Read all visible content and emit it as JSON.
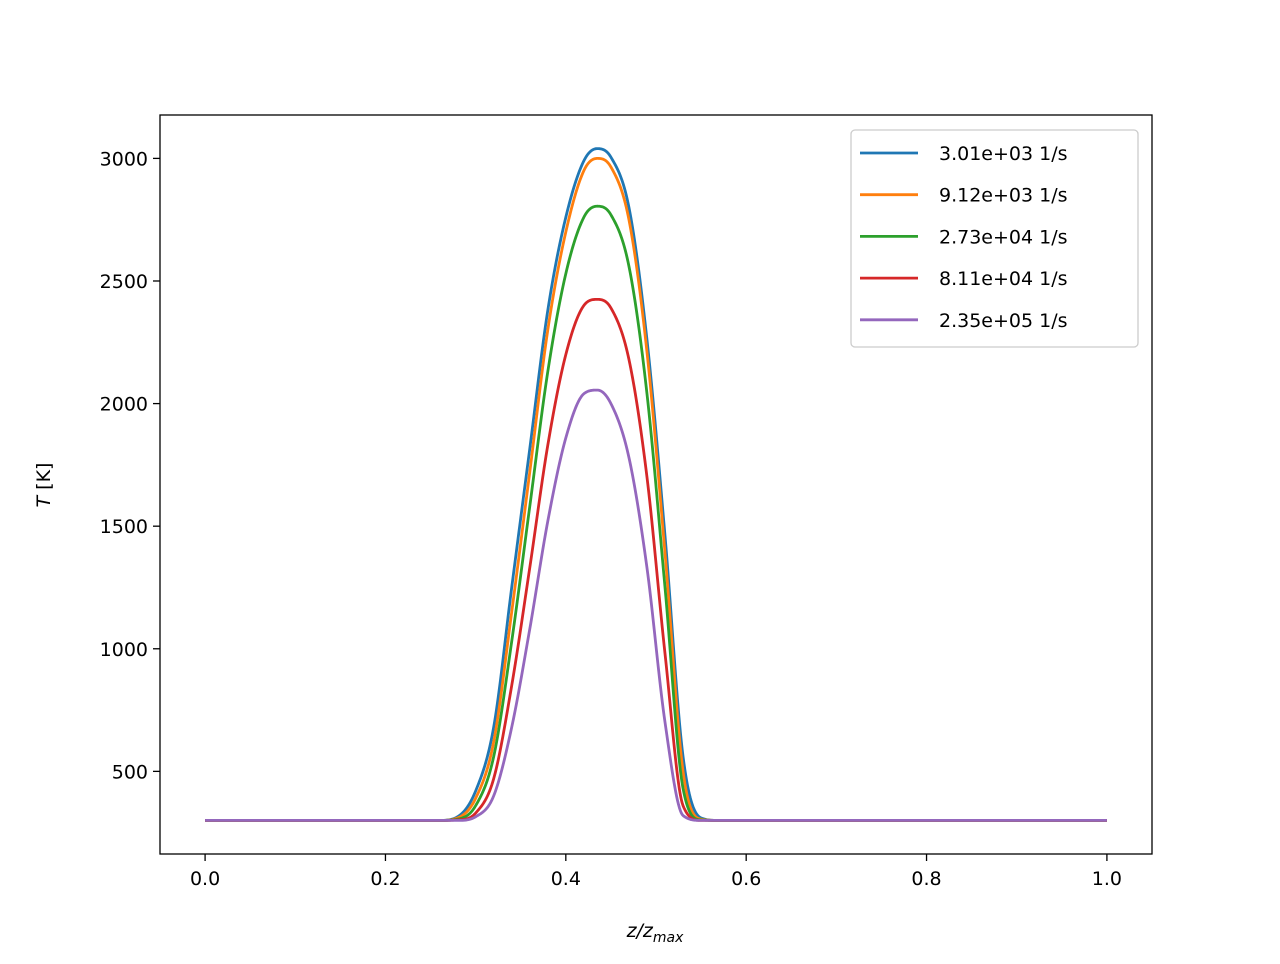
{
  "chart_data": {
    "type": "line",
    "xlabel_main": "z/z",
    "xlabel_sub": "max",
    "ylabel_var": "T",
    "ylabel_unit": "[K]",
    "xlim": [
      -0.05,
      1.05
    ],
    "ylim": [
      163,
      3177
    ],
    "xticks": [
      0.0,
      0.2,
      0.4,
      0.6,
      0.8,
      1.0
    ],
    "xtick_labels": [
      "0.0",
      "0.2",
      "0.4",
      "0.6",
      "0.8",
      "1.0"
    ],
    "yticks": [
      500,
      1000,
      1500,
      2000,
      2500,
      3000
    ],
    "ytick_labels": [
      "500",
      "1000",
      "1500",
      "2000",
      "2500",
      "3000"
    ],
    "grid": false,
    "legend_position": "top-right",
    "x": [
      0,
      0.26,
      0.28,
      0.3,
      0.32,
      0.34,
      0.36,
      0.38,
      0.4,
      0.42,
      0.435,
      0.45,
      0.47,
      0.49,
      0.51,
      0.53,
      0.55,
      0.57,
      1.0
    ],
    "series": [
      {
        "name": "3.01e+03 1/s",
        "color": "#1f77b4",
        "values": [
          300,
          300,
          315,
          420,
          680,
          1250,
          1815,
          2380,
          2760,
          2990,
          3040,
          3005,
          2800,
          2260,
          1460,
          560,
          310,
          300,
          300
        ]
      },
      {
        "name": "9.12e+03 1/s",
        "color": "#ff7f0e",
        "values": [
          300,
          300,
          310,
          390,
          620,
          1150,
          1720,
          2300,
          2700,
          2950,
          3000,
          2965,
          2750,
          2210,
          1390,
          500,
          305,
          300,
          300
        ]
      },
      {
        "name": "2.73e+04 1/s",
        "color": "#2ca02c",
        "values": [
          300,
          300,
          305,
          360,
          560,
          1030,
          1580,
          2130,
          2530,
          2760,
          2805,
          2770,
          2560,
          2040,
          1250,
          430,
          302,
          300,
          300
        ]
      },
      {
        "name": "8.11e+04 1/s",
        "color": "#d62728",
        "values": [
          300,
          300,
          302,
          330,
          470,
          850,
          1330,
          1830,
          2200,
          2400,
          2425,
          2390,
          2180,
          1700,
          980,
          360,
          300,
          300,
          300
        ]
      },
      {
        "name": "2.35e+05 1/s",
        "color": "#9467bd",
        "values": [
          300,
          300,
          300,
          315,
          400,
          680,
          1080,
          1520,
          1860,
          2040,
          2055,
          2000,
          1780,
          1330,
          700,
          320,
          300,
          300,
          300
        ]
      }
    ]
  }
}
